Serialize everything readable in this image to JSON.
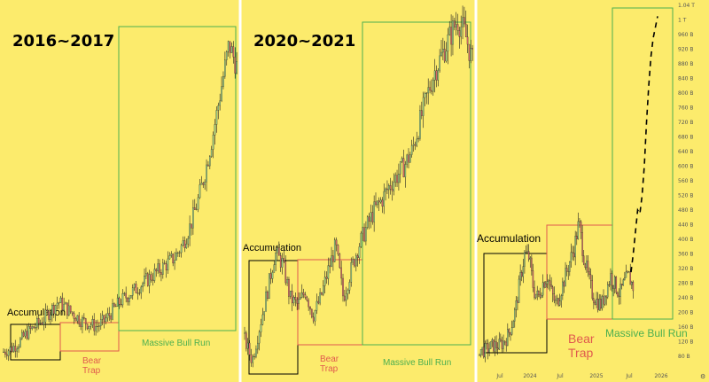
{
  "page": {
    "background": "#FCEB6C",
    "panel_divider_color": "#FFFFFF",
    "candle_color": "#222222",
    "bull_highlight_color": "#9BD38B",
    "bear_highlight_color": "#E06D6D"
  },
  "chart_data": [
    {
      "type": "candlestick",
      "title": "2016~2017",
      "zones": [
        {
          "key": "accumulation",
          "label": "Accumulation",
          "color": "#000000"
        },
        {
          "key": "bear",
          "label": "Bear\nTrap",
          "color": "#E05A4E"
        },
        {
          "key": "bull",
          "label": "Massive Bull Run",
          "color": "#4CAF50"
        }
      ],
      "price_path_relative": [
        0.02,
        0.03,
        0.05,
        0.08,
        0.1,
        0.12,
        0.15,
        0.18,
        0.16,
        0.14,
        0.12,
        0.11,
        0.1,
        0.12,
        0.15,
        0.18,
        0.2,
        0.22,
        0.24,
        0.26,
        0.28,
        0.3,
        0.32,
        0.36,
        0.42,
        0.5,
        0.6,
        0.72,
        0.86,
        1.0,
        0.93
      ]
    },
    {
      "type": "candlestick",
      "title": "2020~2021",
      "zones": [
        {
          "key": "accumulation",
          "label": "Accumulation",
          "color": "#000000"
        },
        {
          "key": "bear",
          "label": "Bear\nTrap",
          "color": "#E05A4E"
        },
        {
          "key": "bull",
          "label": "Massive Bull Run",
          "color": "#4CAF50"
        }
      ],
      "price_path_relative": [
        0.08,
        0.02,
        0.12,
        0.22,
        0.33,
        0.3,
        0.2,
        0.18,
        0.22,
        0.15,
        0.2,
        0.28,
        0.35,
        0.2,
        0.28,
        0.35,
        0.4,
        0.45,
        0.48,
        0.52,
        0.55,
        0.58,
        0.62,
        0.7,
        0.78,
        0.85,
        0.9,
        0.95,
        1.0,
        0.96,
        0.88
      ]
    },
    {
      "type": "candlestick",
      "zones": [
        {
          "key": "accumulation",
          "label": "Accumulation",
          "color": "#000000"
        },
        {
          "key": "bear",
          "label": "Bear\nTrap",
          "color": "#E05A4E"
        },
        {
          "key": "bull",
          "label": "Massive Bull Run",
          "color": "#4CAF50"
        }
      ],
      "y_axis": {
        "ticks": [
          "1.04 T",
          "1 T",
          "960 B",
          "920 B",
          "880 B",
          "840 B",
          "800 B",
          "760 B",
          "720 B",
          "680 B",
          "640 B",
          "600 B",
          "560 B",
          "520 B",
          "480 B",
          "440 B",
          "400 B",
          "360 B",
          "320 B",
          "280 B",
          "240 B",
          "200 B",
          "160 B",
          "120 B",
          "80 B"
        ],
        "min": 80,
        "max": 1040,
        "unit": "B"
      },
      "x_axis": {
        "ticks": [
          "Jul",
          "2024",
          "Jul",
          "2025",
          "Jul",
          "2026"
        ]
      },
      "price_path_B": [
        100,
        95,
        102,
        110,
        108,
        115,
        130,
        160,
        210,
        290,
        360,
        350,
        260,
        240,
        280,
        300,
        250,
        220,
        260,
        300,
        340,
        380,
        445,
        360,
        300,
        250,
        230,
        220,
        260,
        300,
        275,
        250,
        280,
        300,
        270
      ],
      "projection_B": [
        310,
        360,
        420,
        480,
        470,
        520,
        600,
        720,
        820,
        900,
        950,
        980,
        1010
      ]
    }
  ]
}
